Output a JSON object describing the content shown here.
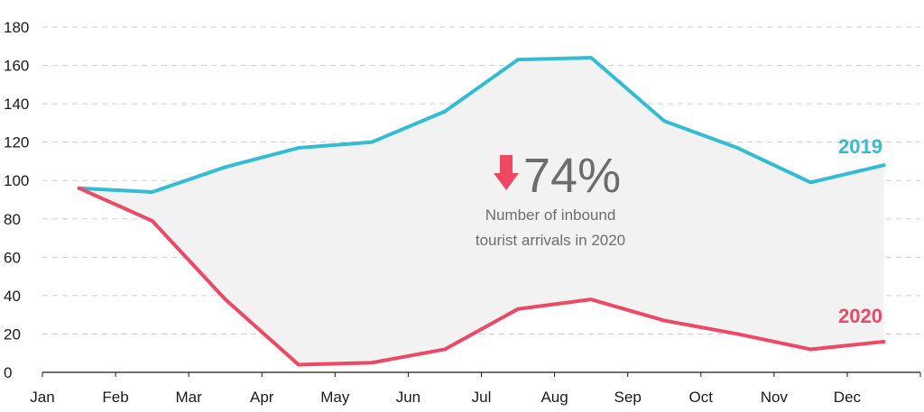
{
  "chart_data": {
    "type": "line",
    "categories": [
      "Jan",
      "Feb",
      "Mar",
      "Apr",
      "May",
      "Jun",
      "Jul",
      "Aug",
      "Sep",
      "Oct",
      "Nov",
      "Dec"
    ],
    "x_positions": [
      0.5,
      1.5,
      2.5,
      3.5,
      4.5,
      5.5,
      6.5,
      7.5,
      8.5,
      9.5,
      10.5,
      11.5
    ],
    "yticks": [
      0,
      20,
      40,
      60,
      80,
      100,
      120,
      140,
      160,
      180
    ],
    "ylim": [
      0,
      180
    ],
    "grid": true,
    "series": [
      {
        "name": "2019",
        "color": "#33bcd4",
        "x": [
          0.5,
          1.5,
          2.5,
          3.5,
          4.5,
          5.5,
          6.5,
          7.5,
          8.5,
          9.5,
          10.5,
          11.5
        ],
        "values": [
          96,
          94,
          107,
          117,
          120,
          136,
          163,
          164,
          131,
          117,
          99,
          108
        ]
      },
      {
        "name": "2020",
        "color": "#ef4864",
        "x": [
          0.5,
          1.5,
          2.5,
          3.5,
          4.5,
          5.5,
          6.5,
          7.5,
          8.5,
          9.5,
          10.5,
          11.5
        ],
        "values": [
          96,
          79,
          38,
          4,
          5,
          12,
          33,
          38,
          27,
          20,
          12,
          16
        ]
      }
    ],
    "fill_between": {
      "color": "#f2f2f2"
    },
    "annotation": {
      "arrow_icon": "down-arrow-icon",
      "arrow_color": "#ef4864",
      "value": "74%",
      "caption_lines": [
        "Number of inbound",
        "tourist arrivals in 2020"
      ]
    }
  }
}
